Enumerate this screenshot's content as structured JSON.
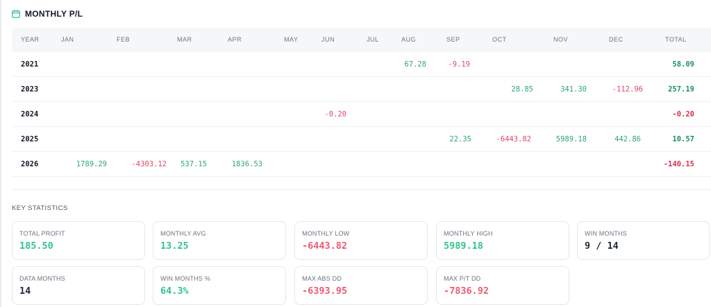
{
  "header": {
    "title": "MONTHLY P/L",
    "icon": "calendar-icon"
  },
  "table": {
    "columns": [
      "YEAR",
      "JAN",
      "FEB",
      "MAR",
      "APR",
      "MAY",
      "JUN",
      "JUL",
      "AUG",
      "SEP",
      "OCT",
      "NOV",
      "DEC",
      "TOTAL"
    ],
    "rows": [
      {
        "year": "2021",
        "aug": "67.28",
        "sep": "-9.19",
        "total": "58.09"
      },
      {
        "year": "2023",
        "oct": "28.85",
        "nov": "341.30",
        "dec": "-112.96",
        "total": "257.19"
      },
      {
        "year": "2024",
        "jun": "-0.20",
        "total": "-0.20"
      },
      {
        "year": "2025",
        "sep": "22.35",
        "oct": "-6443.82",
        "nov": "5989.18",
        "dec": "442.86",
        "total": "10.57"
      },
      {
        "year": "2026",
        "jan": "1789.29",
        "feb": "-4303.12",
        "mar": "537.15",
        "apr": "1836.53",
        "total": "-140.15"
      }
    ]
  },
  "key_statistics": {
    "label": "KEY STATISTICS",
    "items": [
      {
        "label": "TOTAL PROFIT",
        "value": "185.50"
      },
      {
        "label": "MONTHLY AVG",
        "value": "13.25"
      },
      {
        "label": "MONTHLY LOW",
        "value": "-6443.82"
      },
      {
        "label": "MONTHLY HIGH",
        "value": "5989.18"
      },
      {
        "label": "WIN MONTHS",
        "value": "9 / 14"
      },
      {
        "label": "DATA MONTHS",
        "value": "14"
      },
      {
        "label": "WIN MONTHS %",
        "value": "64.3%"
      },
      {
        "label": "MAX ABS DD",
        "value": "-6393.95"
      },
      {
        "label": "MAX P/T DD",
        "value": "-7836.92"
      }
    ]
  },
  "colors": {
    "positive": "#2fa478",
    "negative": "#e04866",
    "header_bg": "#f6f7f9",
    "stat_green": "#33c48a",
    "stat_red": "#ee5a74"
  }
}
